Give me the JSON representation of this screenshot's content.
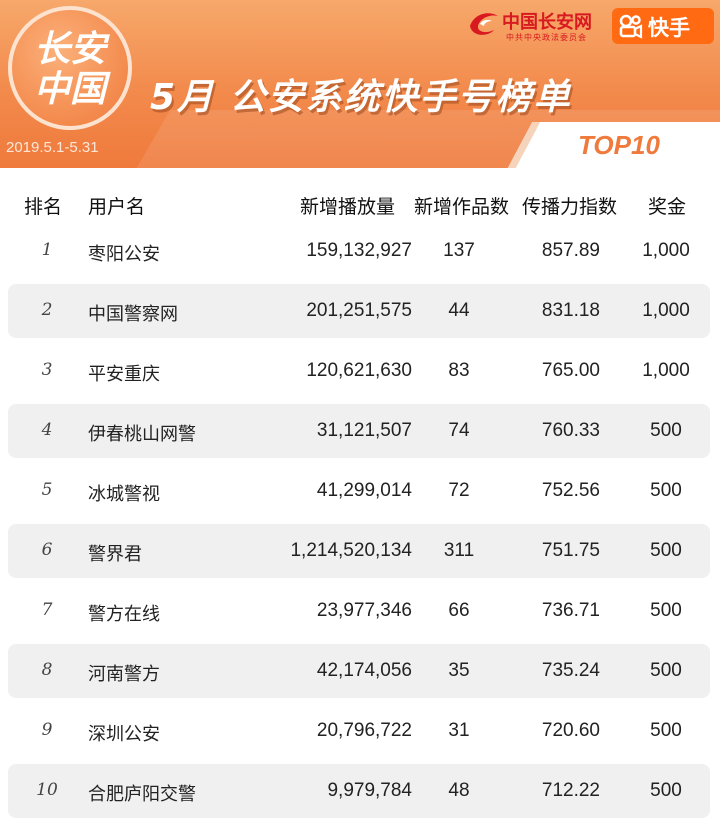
{
  "banner": {
    "logo_line1": "长安",
    "logo_line2": "中国",
    "date_range": "2019.5.1-5.31",
    "title": "5月 公安系统快手号榜单",
    "badge": "TOP10",
    "partner_name": "中国长安网",
    "partner_subtitle": "中共中央政法委员会",
    "platform_name": "快手"
  },
  "table": {
    "headers": {
      "rank": "排名",
      "user": "用户名",
      "plays": "新增播放量",
      "works": "新增作品数",
      "index": "传播力指数",
      "bonus": "奖金"
    },
    "rows": [
      {
        "rank": "1",
        "user": "枣阳公安",
        "plays": "159,132,927",
        "works": "137",
        "index": "857.89",
        "bonus": "1,000"
      },
      {
        "rank": "2",
        "user": "中国警察网",
        "plays": "201,251,575",
        "works": "44",
        "index": "831.18",
        "bonus": "1,000"
      },
      {
        "rank": "3",
        "user": "平安重庆",
        "plays": "120,621,630",
        "works": "83",
        "index": "765.00",
        "bonus": "1,000"
      },
      {
        "rank": "4",
        "user": "伊春桃山网警",
        "plays": "31,121,507",
        "works": "74",
        "index": "760.33",
        "bonus": "500"
      },
      {
        "rank": "5",
        "user": "冰城警视",
        "plays": "41,299,014",
        "works": "72",
        "index": "752.56",
        "bonus": "500"
      },
      {
        "rank": "6",
        "user": "警界君",
        "plays": "1,214,520,134",
        "works": "311",
        "index": "751.75",
        "bonus": "500"
      },
      {
        "rank": "7",
        "user": "警方在线",
        "plays": "23,977,346",
        "works": "66",
        "index": "736.71",
        "bonus": "500"
      },
      {
        "rank": "8",
        "user": "河南警方",
        "plays": "42,174,056",
        "works": "35",
        "index": "735.24",
        "bonus": "500"
      },
      {
        "rank": "9",
        "user": "深圳公安",
        "plays": "20,796,722",
        "works": "31",
        "index": "720.60",
        "bonus": "500"
      },
      {
        "rank": "10",
        "user": "合肥庐阳交警",
        "plays": "9,979,784",
        "works": "48",
        "index": "712.22",
        "bonus": "500"
      }
    ]
  },
  "colors": {
    "banner_orange": "#f28a4c",
    "accent_red": "#d8191f",
    "kuaishou_orange": "#ff6a13",
    "row_shade": "#f0f0f0"
  }
}
